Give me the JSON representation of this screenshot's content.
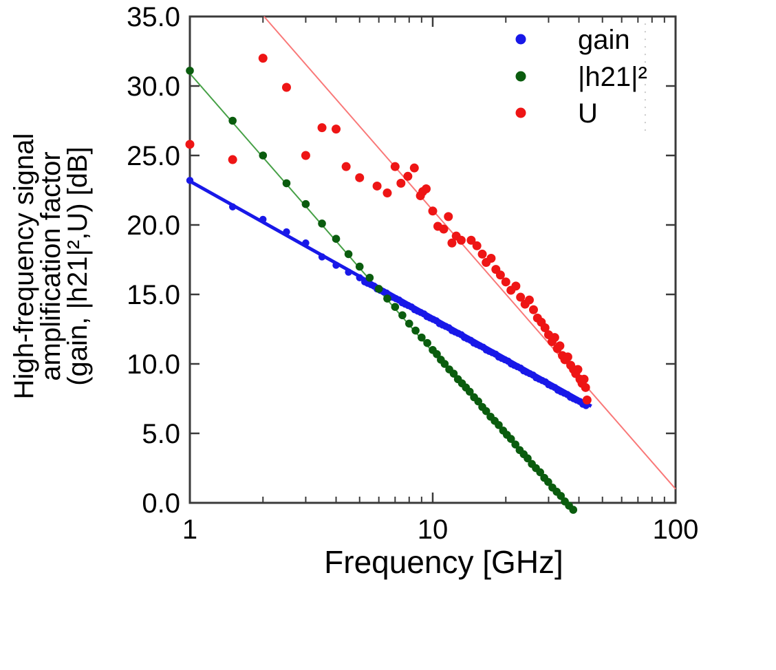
{
  "chart_data": {
    "type": "scatter",
    "title": "",
    "xlabel": "Frequency [GHz]",
    "ylabel_lines": [
      "High-frequency signal",
      "amplification factor",
      "(gain, |h21|²,U) [dB]"
    ],
    "xscale": "log",
    "xlim": [
      1,
      100
    ],
    "ylim": [
      0,
      35
    ],
    "x_ticks": [
      1,
      10,
      100
    ],
    "x_tick_labels": [
      "1",
      "10",
      "100"
    ],
    "x_minor_ticks": [
      2,
      3,
      4,
      5,
      6,
      7,
      8,
      9,
      20,
      30,
      40,
      50,
      60,
      70,
      80,
      90
    ],
    "y_ticks": [
      0,
      5,
      10,
      15,
      20,
      25,
      30,
      35
    ],
    "y_tick_labels": [
      "0.0",
      "5.0",
      "10.0",
      "15.0",
      "20.0",
      "25.0",
      "30.0",
      "35.0"
    ],
    "grid": false,
    "legend_position": "top-right-inside",
    "axis_color": "#3a3a3a",
    "text_color": "#000000",
    "marker_line": {
      "f": 75,
      "y_from": 34.5,
      "y_to": 26.5,
      "color": "#c9c9c9"
    },
    "series": [
      {
        "name": "gain",
        "label": "gain",
        "color": "#1818e8",
        "point_r": 5.2,
        "fit_line": {
          "x": [
            1,
            45
          ],
          "y": [
            23.15,
            6.95
          ],
          "width": 5,
          "color": "#1818e8"
        },
        "points": [
          [
            1,
            23.2
          ],
          [
            1.5,
            21.3
          ],
          [
            2,
            20.4
          ],
          [
            2.5,
            19.5
          ],
          [
            3,
            18.7
          ],
          [
            3.5,
            17.7
          ],
          [
            4,
            17.1
          ],
          [
            4.5,
            16.6
          ],
          [
            5,
            16.2
          ],
          [
            5.25,
            15.9
          ],
          [
            5.4,
            15.8
          ],
          [
            5.57,
            15.7
          ],
          [
            5.73,
            15.6
          ],
          [
            5.9,
            15.4
          ],
          [
            6.08,
            15.3
          ],
          [
            6.26,
            15.2
          ],
          [
            6.45,
            15.1
          ],
          [
            6.64,
            14.9
          ],
          [
            6.84,
            14.8
          ],
          [
            7.05,
            14.7
          ],
          [
            7.26,
            14.6
          ],
          [
            7.48,
            14.4
          ],
          [
            7.7,
            14.3
          ],
          [
            7.93,
            14.2
          ],
          [
            8.17,
            14.1
          ],
          [
            8.42,
            13.9
          ],
          [
            8.67,
            13.8
          ],
          [
            8.93,
            13.7
          ],
          [
            9.2,
            13.6
          ],
          [
            9.47,
            13.4
          ],
          [
            9.76,
            13.3
          ],
          [
            10.05,
            13.2
          ],
          [
            10.35,
            13.1
          ],
          [
            10.66,
            12.9
          ],
          [
            10.98,
            12.8
          ],
          [
            11.31,
            12.7
          ],
          [
            11.65,
            12.6
          ],
          [
            12,
            12.4
          ],
          [
            12.36,
            12.3
          ],
          [
            12.73,
            12.2
          ],
          [
            13.11,
            12.1
          ],
          [
            13.5,
            11.9
          ],
          [
            13.91,
            11.8
          ],
          [
            14.33,
            11.7
          ],
          [
            14.76,
            11.5
          ],
          [
            15.2,
            11.4
          ],
          [
            15.65,
            11.3
          ],
          [
            16.12,
            11.2
          ],
          [
            16.61,
            11.0
          ],
          [
            17.1,
            10.9
          ],
          [
            17.62,
            10.8
          ],
          [
            18.15,
            10.7
          ],
          [
            18.69,
            10.5
          ],
          [
            19.25,
            10.4
          ],
          [
            19.83,
            10.3
          ],
          [
            20.42,
            10.2
          ],
          [
            21.04,
            10.0
          ],
          [
            21.67,
            9.9
          ],
          [
            22.32,
            9.8
          ],
          [
            22.99,
            9.7
          ],
          [
            23.68,
            9.5
          ],
          [
            24.39,
            9.4
          ],
          [
            25.12,
            9.3
          ],
          [
            25.87,
            9.2
          ],
          [
            26.65,
            9.0
          ],
          [
            27.45,
            8.9
          ],
          [
            28.27,
            8.8
          ],
          [
            29.12,
            8.7
          ],
          [
            29.99,
            8.5
          ],
          [
            30.89,
            8.4
          ],
          [
            31.82,
            8.3
          ],
          [
            32.77,
            8.1
          ],
          [
            33.76,
            8.0
          ],
          [
            34.77,
            7.9
          ],
          [
            35.81,
            7.8
          ],
          [
            36.89,
            7.6
          ],
          [
            37.99,
            7.5
          ],
          [
            39.14,
            7.4
          ],
          [
            40.31,
            7.3
          ],
          [
            41.52,
            7.1
          ],
          [
            42.77,
            7.0
          ]
        ]
      },
      {
        "name": "h21-squared",
        "label": "|h21|²",
        "color": "#0a5c0e",
        "point_r": 5.8,
        "fit_line": {
          "x": [
            1,
            36.5
          ],
          "y": [
            30.9,
            -0.4
          ],
          "width": 2,
          "color": "#46a046"
        },
        "points": [
          [
            1,
            31.1
          ],
          [
            1.5,
            27.5
          ],
          [
            2,
            25.0
          ],
          [
            2.5,
            23.0
          ],
          [
            3,
            21.5
          ],
          [
            3.5,
            20.1
          ],
          [
            4,
            19.0
          ],
          [
            4.5,
            17.9
          ],
          [
            5,
            17.0
          ],
          [
            5.5,
            16.2
          ],
          [
            6,
            15.4
          ],
          [
            6.5,
            14.7
          ],
          [
            7,
            14.1
          ],
          [
            7.5,
            13.5
          ],
          [
            8,
            12.9
          ],
          [
            8.5,
            12.4
          ],
          [
            9,
            11.9
          ],
          [
            9.5,
            11.5
          ],
          [
            10,
            11.0
          ],
          [
            10.4,
            10.7
          ],
          [
            10.8,
            10.3
          ],
          [
            11.2,
            10.0
          ],
          [
            11.7,
            9.6
          ],
          [
            12.2,
            9.3
          ],
          [
            12.7,
            8.9
          ],
          [
            13.2,
            8.6
          ],
          [
            13.7,
            8.3
          ],
          [
            14.2,
            8.0
          ],
          [
            14.8,
            7.6
          ],
          [
            15.4,
            7.3
          ],
          [
            16,
            6.9
          ],
          [
            16.6,
            6.6
          ],
          [
            17.3,
            6.2
          ],
          [
            18,
            5.9
          ],
          [
            18.7,
            5.6
          ],
          [
            19.5,
            5.2
          ],
          [
            20.2,
            4.9
          ],
          [
            21,
            4.6
          ],
          [
            21.9,
            4.2
          ],
          [
            22.8,
            3.8
          ],
          [
            23.7,
            3.5
          ],
          [
            24.6,
            3.2
          ],
          [
            25.6,
            2.8
          ],
          [
            26.6,
            2.5
          ],
          [
            27.7,
            2.2
          ],
          [
            28.8,
            1.8
          ],
          [
            29.9,
            1.5
          ],
          [
            31.1,
            1.1
          ],
          [
            32.4,
            0.8
          ],
          [
            33.7,
            0.5
          ],
          [
            35,
            0.1
          ],
          [
            36.4,
            -0.2
          ],
          [
            37.9,
            -0.5
          ]
        ]
      },
      {
        "name": "u",
        "label": "U",
        "color": "#ee1515",
        "point_r": 6.5,
        "fit_line": {
          "x": [
            2.02,
            100
          ],
          "y": [
            35.0,
            1.0
          ],
          "width": 2,
          "color": "#f97878"
        },
        "points": [
          [
            1,
            25.8
          ],
          [
            1.5,
            24.7
          ],
          [
            2,
            32.0
          ],
          [
            2.5,
            29.9
          ],
          [
            3,
            25.0
          ],
          [
            3.5,
            27.0
          ],
          [
            4,
            26.9
          ],
          [
            4.4,
            24.2
          ],
          [
            5,
            23.4
          ],
          [
            5.9,
            22.8
          ],
          [
            6.5,
            22.3
          ],
          [
            7,
            24.2
          ],
          [
            7.4,
            23.0
          ],
          [
            7.9,
            23.5
          ],
          [
            8.4,
            24.1
          ],
          [
            8.9,
            22.1
          ],
          [
            9.1,
            22.4
          ],
          [
            9.4,
            22.6
          ],
          [
            10,
            21.0
          ],
          [
            10.5,
            19.9
          ],
          [
            11.1,
            19.7
          ],
          [
            11.6,
            20.6
          ],
          [
            12,
            18.7
          ],
          [
            12.5,
            19.2
          ],
          [
            13.1,
            18.9
          ],
          [
            14.4,
            18.9
          ],
          [
            15.2,
            18.5
          ],
          [
            16,
            17.9
          ],
          [
            16.6,
            17.3
          ],
          [
            17.4,
            17.6
          ],
          [
            18.2,
            16.8
          ],
          [
            19,
            16.4
          ],
          [
            20,
            15.9
          ],
          [
            21,
            15.3
          ],
          [
            22,
            15.6
          ],
          [
            23,
            14.8
          ],
          [
            24,
            14.3
          ],
          [
            25,
            14.6
          ],
          [
            26,
            13.9
          ],
          [
            27,
            13.3
          ],
          [
            28,
            13.0
          ],
          [
            29,
            12.6
          ],
          [
            30,
            12.1
          ],
          [
            31,
            11.6
          ],
          [
            31.8,
            11.9
          ],
          [
            32.6,
            11.1
          ],
          [
            33.4,
            11.3
          ],
          [
            34.2,
            10.6
          ],
          [
            35,
            10.3
          ],
          [
            36,
            10.5
          ],
          [
            37,
            9.9
          ],
          [
            38,
            9.6
          ],
          [
            38.8,
            9.3
          ],
          [
            39.6,
            9.6
          ],
          [
            40.4,
            8.9
          ],
          [
            41.2,
            8.6
          ],
          [
            42,
            8.9
          ],
          [
            42.6,
            8.3
          ],
          [
            43.2,
            7.4
          ]
        ]
      }
    ]
  }
}
